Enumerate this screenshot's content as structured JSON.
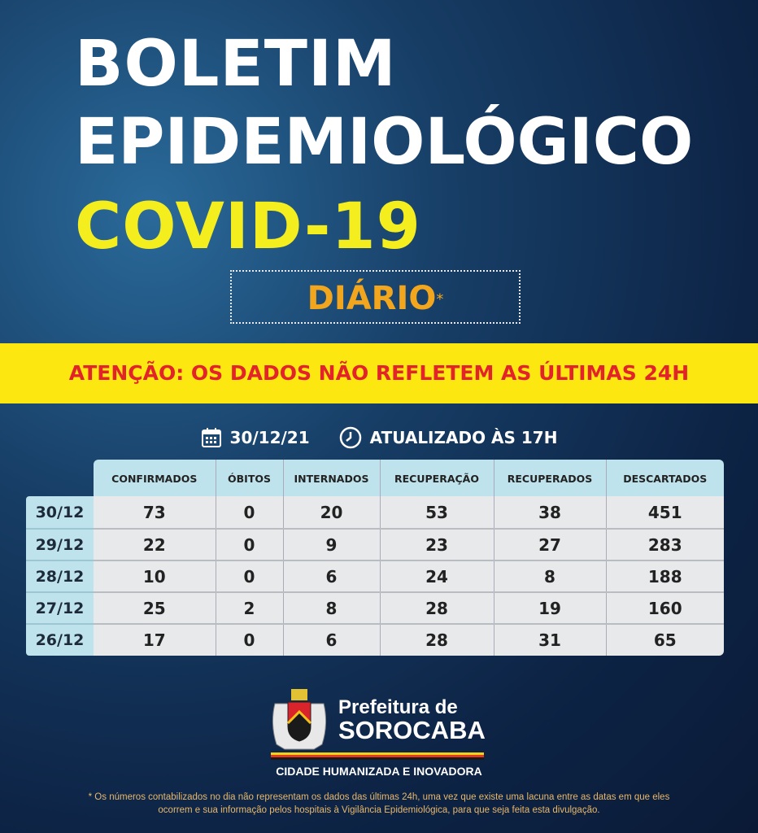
{
  "title": {
    "line1": "BOLETIM",
    "line2": "EPIDEMIOLÓGICO",
    "line3": "COVID-19",
    "badge": "DIÁRIO",
    "badge_mark": "*"
  },
  "banner": "ATENÇÃO: OS DADOS NÃO REFLETEM AS ÚLTIMAS 24H",
  "info": {
    "date": "30/12/21",
    "updated": "ATUALIZADO ÀS 17H",
    "date_icon": "calendar-icon",
    "time_icon": "clock-icon"
  },
  "table": {
    "headers": [
      "CONFIRMADOS",
      "ÓBITOS",
      "INTERNADOS",
      "RECUPERAÇÃO",
      "RECUPERADOS",
      "DESCARTADOS"
    ],
    "rows": [
      {
        "date": "30/12",
        "values": [
          "73",
          "0",
          "20",
          "53",
          "38",
          "451"
        ]
      },
      {
        "date": "29/12",
        "values": [
          "22",
          "0",
          "9",
          "23",
          "27",
          "283"
        ]
      },
      {
        "date": "28/12",
        "values": [
          "10",
          "0",
          "6",
          "24",
          "8",
          "188"
        ]
      },
      {
        "date": "27/12",
        "values": [
          "25",
          "2",
          "8",
          "28",
          "19",
          "160"
        ]
      },
      {
        "date": "26/12",
        "values": [
          "17",
          "0",
          "6",
          "28",
          "31",
          "65"
        ]
      }
    ]
  },
  "logo": {
    "line1": "Prefeitura de",
    "line2": "SOROCABA",
    "tagline": "CIDADE HUMANIZADA E INOVADORA"
  },
  "footnote": "* Os números contabilizados no dia não representam os dados das últimas 24h, uma vez que existe uma lacuna entre as datas em que eles ocorrem e sua informação pelos hospitais à Vigilância Epidemiológica, para que seja feita esta divulgação.",
  "colors": {
    "yellow": "#f5ee1f",
    "orange": "#f2a61d",
    "banner_bg": "#fde711",
    "banner_text": "#e2232a",
    "table_header": "#bfe3ec",
    "table_body": "#e7e9ea"
  }
}
